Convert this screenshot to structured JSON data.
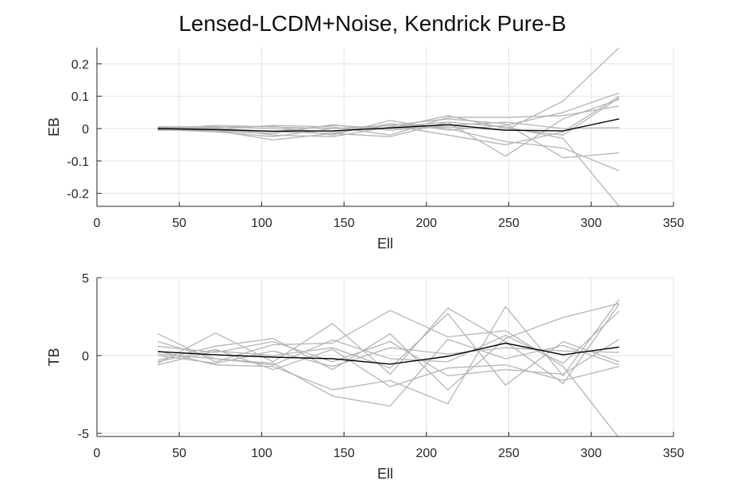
{
  "title": "Lensed-LCDM+Noise, Kendrick Pure-B",
  "chart_data": [
    {
      "type": "line",
      "xlabel": "Ell",
      "ylabel": "EB",
      "xlim": [
        0,
        350
      ],
      "ylim": [
        -0.24,
        0.25
      ],
      "xticks": [
        0,
        50,
        100,
        150,
        200,
        250,
        300,
        350
      ],
      "xtick_labels": [
        "0",
        "50",
        "100",
        "150",
        "200",
        "250",
        "300",
        "350"
      ],
      "yticks": [
        -0.2,
        -0.1,
        0,
        0.1,
        0.2
      ],
      "ytick_labels": [
        "-0.2",
        "-0.1",
        "0",
        "0.1",
        "0.2"
      ],
      "grid": true,
      "x": [
        37,
        72,
        107,
        143,
        178,
        213,
        248,
        283,
        317
      ],
      "mean": {
        "color": "#000000",
        "values": [
          0.0,
          -0.003,
          -0.008,
          -0.007,
          0.002,
          0.012,
          -0.005,
          -0.007,
          0.03
        ]
      },
      "series_color": "#b5b5b5",
      "series": [
        {
          "values": [
            0.003,
            0.0,
            -0.01,
            0.01,
            0.0,
            0.005,
            -0.005,
            0.085,
            0.25
          ]
        },
        {
          "values": [
            -0.004,
            -0.006,
            -0.035,
            -0.015,
            -0.025,
            0.02,
            0.005,
            -0.03,
            -0.24
          ]
        },
        {
          "values": [
            0.006,
            0.003,
            -0.02,
            -0.025,
            0.005,
            0.02,
            -0.085,
            0.03,
            0.09
          ]
        },
        {
          "values": [
            -0.002,
            0.01,
            0.005,
            0.0,
            0.01,
            0.03,
            0.015,
            -0.09,
            -0.075
          ]
        },
        {
          "values": [
            0.0,
            -0.005,
            -0.01,
            -0.015,
            0.015,
            0.0,
            -0.04,
            -0.06,
            -0.13
          ]
        },
        {
          "values": [
            0.005,
            0.006,
            0.0,
            -0.01,
            0.01,
            -0.02,
            -0.05,
            -0.01,
            0.1
          ]
        },
        {
          "values": [
            -0.006,
            -0.002,
            0.01,
            0.005,
            -0.02,
            0.035,
            0.035,
            0.04,
            0.07
          ]
        },
        {
          "values": [
            0.002,
            -0.008,
            -0.015,
            0.012,
            -0.005,
            0.01,
            0.02,
            0.0,
            0.003
          ]
        },
        {
          "values": [
            0.0,
            0.004,
            0.008,
            -0.02,
            0.025,
            -0.005,
            0.01,
            0.05,
            0.11
          ]
        },
        {
          "values": [
            -0.003,
            -0.01,
            -0.025,
            0.0,
            0.0,
            0.04,
            0.0,
            -0.02,
            0.095
          ]
        }
      ]
    },
    {
      "type": "line",
      "xlabel": "Ell",
      "ylabel": "TB",
      "xlim": [
        0,
        350
      ],
      "ylim": [
        -5.2,
        5
      ],
      "xticks": [
        0,
        50,
        100,
        150,
        200,
        250,
        300,
        350
      ],
      "xtick_labels": [
        "0",
        "50",
        "100",
        "150",
        "200",
        "250",
        "300",
        "350"
      ],
      "yticks": [
        -5,
        0,
        5
      ],
      "ytick_labels": [
        "-5",
        "0",
        "5"
      ],
      "grid": true,
      "x": [
        37,
        72,
        107,
        143,
        178,
        213,
        248,
        283,
        317
      ],
      "mean": {
        "color": "#000000",
        "values": [
          0.25,
          0.05,
          -0.1,
          -0.2,
          -0.55,
          -0.05,
          0.8,
          0.05,
          0.55
        ]
      },
      "series_color": "#b5b5b5",
      "series": [
        {
          "values": [
            1.4,
            -0.4,
            0.7,
            0.8,
            2.9,
            1.2,
            1.6,
            -0.7,
            -5.3
          ]
        },
        {
          "values": [
            -0.5,
            1.45,
            -0.4,
            2.05,
            -1.2,
            3.05,
            0.9,
            -1.8,
            3.3
          ]
        },
        {
          "values": [
            0.3,
            -0.6,
            -0.7,
            -2.2,
            -1.6,
            -3.1,
            3.15,
            -1.3,
            3.6
          ]
        },
        {
          "values": [
            -0.3,
            0.6,
            1.1,
            -0.9,
            1.4,
            -2.2,
            1.1,
            2.45,
            3.35
          ]
        },
        {
          "values": [
            0.9,
            -0.2,
            -0.5,
            -2.6,
            -3.25,
            1.05,
            -0.2,
            0.65,
            -0.6
          ]
        },
        {
          "values": [
            -0.6,
            0.3,
            0.0,
            0.5,
            -0.8,
            2.7,
            -1.9,
            0.9,
            -0.4
          ]
        },
        {
          "values": [
            0.1,
            -0.2,
            -0.6,
            1.0,
            -0.2,
            -0.4,
            1.3,
            -0.5,
            2.85
          ]
        },
        {
          "values": [
            0.6,
            0.2,
            0.9,
            -0.4,
            0.9,
            -1.3,
            -0.9,
            -1.2,
            1.05
          ]
        },
        {
          "values": [
            -0.4,
            0.4,
            -0.9,
            0.4,
            -2.0,
            -0.8,
            -0.6,
            -1.6,
            -0.7
          ]
        },
        {
          "values": [
            0.0,
            -0.5,
            0.3,
            -0.7,
            0.5,
            0.1,
            0.5,
            0.3,
            0.2
          ]
        }
      ]
    }
  ]
}
